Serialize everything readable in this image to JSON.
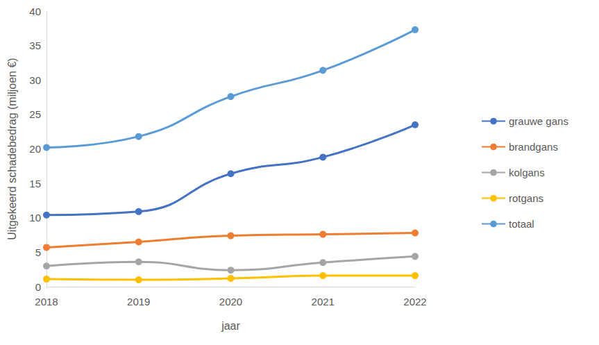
{
  "chart_data": {
    "type": "line",
    "x_label": "jaar",
    "y_label": "Uitgekeerd schadebedrag (miljoen €)",
    "categories": [
      "2018",
      "2019",
      "2020",
      "2021",
      "2022"
    ],
    "series": [
      {
        "name": "grauwe gans",
        "color": "#4472c4",
        "values": [
          10.4,
          10.9,
          16.4,
          18.8,
          23.5
        ]
      },
      {
        "name": "brandgans",
        "color": "#ed7d31",
        "values": [
          5.7,
          6.5,
          7.4,
          7.6,
          7.8
        ]
      },
      {
        "name": "kolgans",
        "color": "#a5a5a5",
        "values": [
          3.0,
          3.6,
          2.4,
          3.5,
          4.4
        ]
      },
      {
        "name": "rotgans",
        "color": "#ffc000",
        "values": [
          1.1,
          1.0,
          1.2,
          1.6,
          1.6
        ]
      },
      {
        "name": "totaal",
        "color": "#5b9bd5",
        "values": [
          20.2,
          21.8,
          27.6,
          31.4,
          37.3
        ]
      }
    ],
    "ylim": [
      0,
      40
    ],
    "yticks": [
      0,
      5,
      10,
      15,
      20,
      25,
      30,
      35,
      40
    ],
    "grid": false,
    "legend": "right",
    "marker": "circle",
    "line_style": "smooth"
  }
}
